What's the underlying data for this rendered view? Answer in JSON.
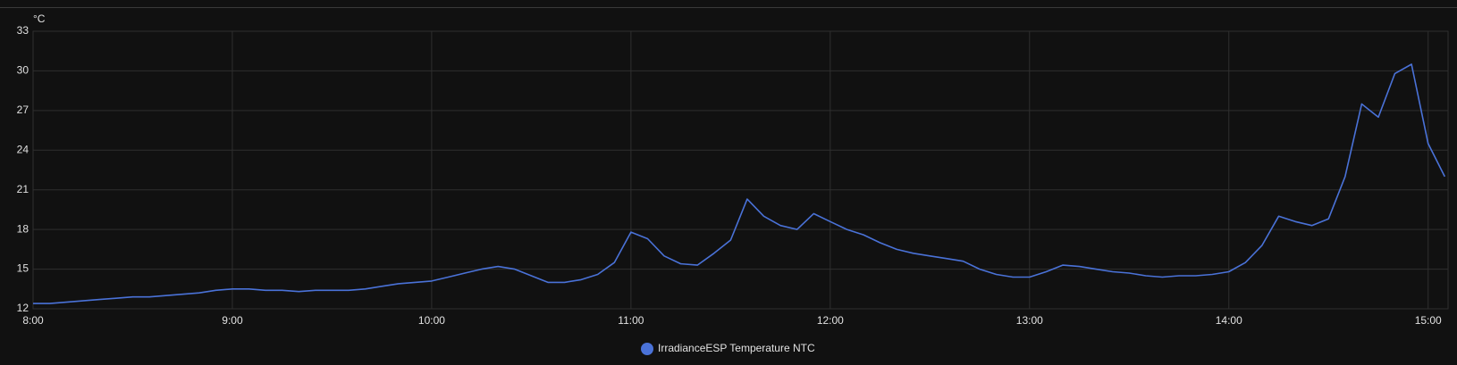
{
  "chart_data": {
    "type": "line",
    "y_unit": "°C",
    "x": [
      "8:00",
      "8:05",
      "8:10",
      "8:15",
      "8:20",
      "8:25",
      "8:30",
      "8:35",
      "8:40",
      "8:45",
      "8:50",
      "8:55",
      "9:00",
      "9:05",
      "9:10",
      "9:15",
      "9:20",
      "9:25",
      "9:30",
      "9:35",
      "9:40",
      "9:45",
      "9:50",
      "9:55",
      "10:00",
      "10:05",
      "10:10",
      "10:15",
      "10:20",
      "10:25",
      "10:30",
      "10:35",
      "10:40",
      "10:45",
      "10:50",
      "10:55",
      "11:00",
      "11:05",
      "11:10",
      "11:15",
      "11:20",
      "11:25",
      "11:30",
      "11:35",
      "11:40",
      "11:45",
      "11:50",
      "11:55",
      "12:00",
      "12:05",
      "12:10",
      "12:15",
      "12:20",
      "12:25",
      "12:30",
      "12:35",
      "12:40",
      "12:45",
      "12:50",
      "12:55",
      "13:00",
      "13:05",
      "13:10",
      "13:15",
      "13:20",
      "13:25",
      "13:30",
      "13:35",
      "13:40",
      "13:45",
      "13:50",
      "13:55",
      "14:00",
      "14:05",
      "14:10",
      "14:15",
      "14:20",
      "14:25",
      "14:30",
      "14:35",
      "14:40",
      "14:45",
      "14:50",
      "14:55",
      "15:00",
      "15:05"
    ],
    "series": [
      {
        "name": "IrradianceESP Temperature NTC",
        "color": "#4a72d8",
        "values": [
          12.4,
          12.4,
          12.5,
          12.6,
          12.7,
          12.8,
          12.9,
          12.9,
          13.0,
          13.1,
          13.2,
          13.4,
          13.5,
          13.5,
          13.4,
          13.4,
          13.3,
          13.4,
          13.4,
          13.4,
          13.5,
          13.7,
          13.9,
          14.0,
          14.1,
          14.4,
          14.7,
          15.0,
          15.2,
          15.0,
          14.5,
          14.0,
          14.0,
          14.2,
          14.6,
          15.5,
          17.8,
          17.3,
          16.0,
          15.4,
          15.3,
          16.2,
          17.2,
          20.3,
          19.0,
          18.3,
          18.0,
          19.2,
          18.6,
          18.0,
          17.6,
          17.0,
          16.5,
          16.2,
          16.0,
          15.8,
          15.6,
          15.0,
          14.6,
          14.4,
          14.4,
          14.8,
          15.3,
          15.2,
          15.0,
          14.8,
          14.7,
          14.5,
          14.4,
          14.5,
          14.5,
          14.6,
          14.8,
          15.5,
          16.8,
          19.0,
          18.6,
          18.3,
          18.8,
          22.0,
          27.5,
          26.5,
          29.8,
          30.5,
          24.5,
          22.0
        ]
      }
    ],
    "xlim": [
      "8:00",
      "15:06"
    ],
    "xticks": [
      "8:00",
      "9:00",
      "10:00",
      "11:00",
      "12:00",
      "13:00",
      "14:00",
      "15:00"
    ],
    "ylim": [
      12,
      33
    ],
    "yticks": [
      12,
      15,
      18,
      21,
      24,
      27,
      30,
      33
    ],
    "grid": true,
    "legend": "bottom"
  }
}
